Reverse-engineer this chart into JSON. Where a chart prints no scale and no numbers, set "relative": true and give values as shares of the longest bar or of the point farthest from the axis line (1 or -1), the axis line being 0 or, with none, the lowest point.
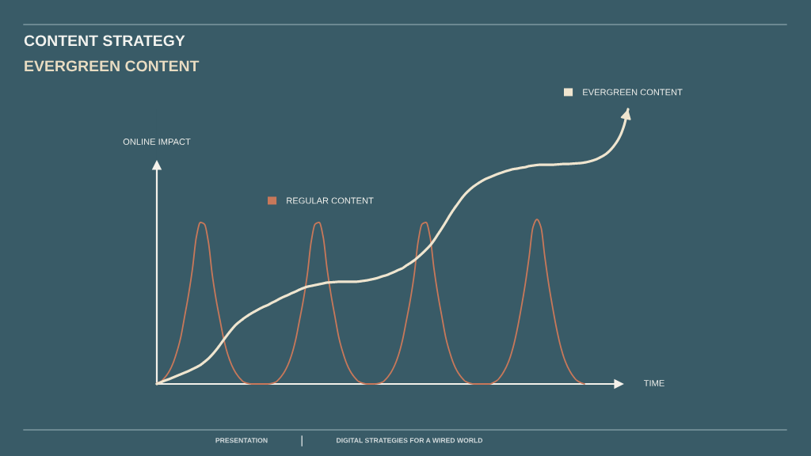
{
  "chart_data": {
    "type": "line",
    "title": "CONTENT STRATEGY",
    "subtitle": "EVERGREEN CONTENT",
    "xlabel": "TIME",
    "ylabel": "ONLINE IMPACT",
    "annotations": [
      "PRESENTATION",
      "DIGITAL STRATEGIES FOR A WIRED WORLD"
    ],
    "relative": true,
    "legend": "top",
    "categories": [
      null,
      null,
      null,
      null,
      null,
      null,
      null,
      null,
      null,
      null,
      null,
      null,
      null,
      null,
      null,
      null,
      null,
      null,
      null,
      null,
      null,
      null,
      null,
      null,
      null,
      null,
      null,
      null,
      null,
      null,
      null,
      null,
      null,
      null,
      null,
      null,
      null,
      null,
      null,
      null,
      null,
      null,
      null,
      null,
      null,
      null,
      null,
      null,
      null,
      null,
      null,
      null,
      null,
      null,
      null,
      null,
      null,
      null,
      null,
      null,
      null,
      null,
      null,
      null,
      null,
      null,
      null,
      null,
      null,
      null,
      null,
      null,
      null,
      null,
      null,
      null,
      null,
      null,
      null,
      null,
      null,
      null,
      null,
      null,
      null,
      null,
      null,
      null,
      null,
      null,
      null,
      null,
      null,
      null,
      null,
      null,
      null,
      null,
      null,
      null,
      null,
      null,
      null,
      null,
      null,
      null,
      null,
      null,
      null,
      null,
      null,
      null,
      null,
      null,
      null,
      null,
      null,
      null,
      null,
      null
    ],
    "series": [
      {
        "name": "REGULAR CONTENT",
        "color": "#c8785a",
        "values": [
          0.003,
          0.009,
          0.023,
          0.043,
          0.072,
          0.114,
          0.167,
          0.244,
          0.324,
          0.419,
          0.536,
          0.588,
          0.582,
          0.519,
          0.398,
          0.305,
          0.229,
          0.157,
          0.104,
          0.066,
          0.039,
          0.02,
          0.007,
          0.002,
          0,
          0,
          0,
          0,
          0,
          0.002,
          0.007,
          0.02,
          0.039,
          0.066,
          0.104,
          0.157,
          0.229,
          0.305,
          0.398,
          0.519,
          0.582,
          0.588,
          0.536,
          0.419,
          0.324,
          0.244,
          0.167,
          0.114,
          0.072,
          0.043,
          0.023,
          0.009,
          0.003,
          0,
          0,
          0,
          0.002,
          0.007,
          0.02,
          0.039,
          0.066,
          0.104,
          0.157,
          0.229,
          0.305,
          0.398,
          0.519,
          0.582,
          0.588,
          0.536,
          0.419,
          0.324,
          0.244,
          0.167,
          0.114,
          0.072,
          0.043,
          0.023,
          0.009,
          0.003,
          0,
          0,
          0,
          0,
          0,
          0.005,
          0.014,
          0.031,
          0.055,
          0.088,
          0.135,
          0.198,
          0.275,
          0.36,
          0.461,
          0.571,
          0.599,
          0.571,
          0.461,
          0.36,
          0.275,
          0.198,
          0.135,
          0.088,
          0.055,
          0.031,
          0.014,
          0.005,
          0,
          null,
          null,
          null,
          null,
          null,
          null,
          null,
          null,
          null,
          null,
          null
        ]
      },
      {
        "name": "EVERGREEN CONTENT",
        "color": "#efe5cf",
        "values": [
          0,
          0.006,
          0.012,
          0.017,
          0.023,
          0.029,
          0.035,
          0.041,
          0.047,
          0.054,
          0.061,
          0.069,
          0.08,
          0.092,
          0.107,
          0.124,
          0.143,
          0.163,
          0.182,
          0.2,
          0.216,
          0.228,
          0.239,
          0.249,
          0.258,
          0.266,
          0.274,
          0.281,
          0.287,
          0.295,
          0.302,
          0.31,
          0.317,
          0.323,
          0.33,
          0.336,
          0.343,
          0.349,
          0.354,
          0.357,
          0.36,
          0.363,
          0.366,
          0.369,
          0.37,
          0.371,
          0.372,
          0.372,
          0.372,
          0.372,
          0.372,
          0.373,
          0.375,
          0.377,
          0.38,
          0.383,
          0.387,
          0.392,
          0.396,
          0.402,
          0.408,
          0.415,
          0.421,
          0.431,
          0.44,
          0.45,
          0.462,
          0.475,
          0.489,
          0.504,
          0.523,
          0.545,
          0.567,
          0.59,
          0.614,
          0.636,
          0.656,
          0.676,
          0.693,
          0.707,
          0.719,
          0.729,
          0.738,
          0.746,
          0.752,
          0.758,
          0.764,
          0.769,
          0.774,
          0.778,
          0.782,
          0.784,
          0.787,
          0.789,
          0.793,
          0.795,
          0.797,
          0.798,
          0.798,
          0.798,
          0.798,
          0.799,
          0.8,
          0.801,
          0.801,
          0.802,
          0.803,
          0.804,
          0.806,
          0.809,
          0.813,
          0.818,
          0.825,
          0.833,
          0.844,
          0.859,
          0.878,
          0.903,
          0.941,
          1
        ]
      }
    ]
  }
}
